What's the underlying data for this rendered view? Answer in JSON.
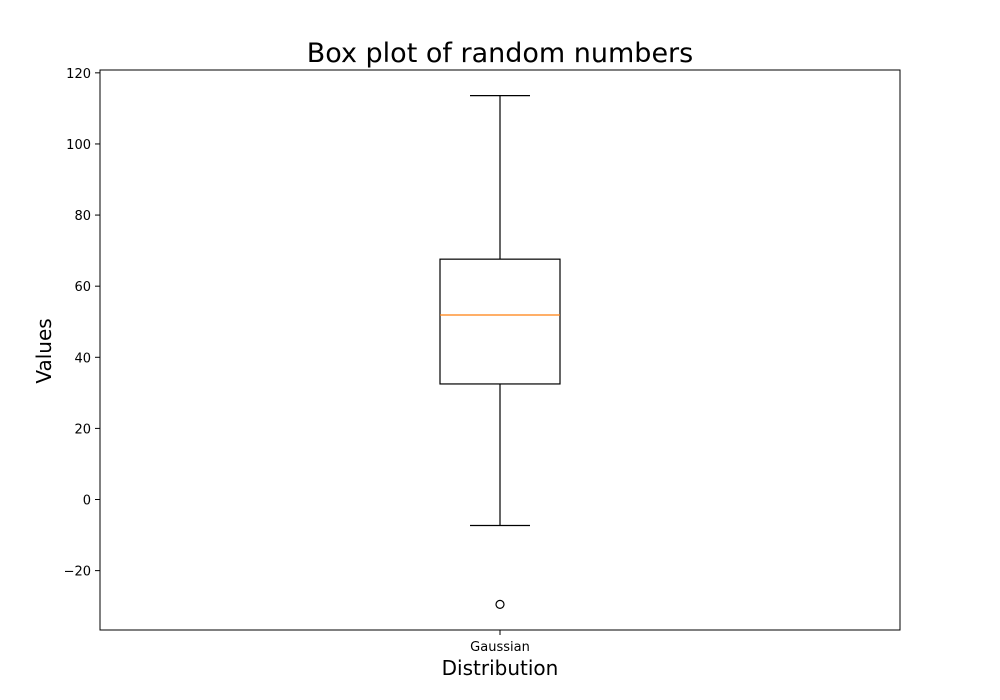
{
  "chart_data": {
    "type": "box",
    "title": "Box plot of random numbers",
    "xlabel": "Distribution",
    "ylabel": "Values",
    "categories": [
      "Gaussian"
    ],
    "boxes": [
      {
        "name": "Gaussian",
        "whisker_low": -7.3,
        "q1": 32.5,
        "median": 51.9,
        "q3": 67.6,
        "whisker_high": 113.6,
        "outliers": [
          -29.5
        ]
      }
    ],
    "ylim": [
      -36.7,
      120.8
    ],
    "yticks": [
      -20,
      0,
      20,
      40,
      60,
      80,
      100,
      120
    ],
    "ytick_labels": [
      "−20",
      "0",
      "20",
      "40",
      "60",
      "80",
      "100",
      "120"
    ],
    "grid": false,
    "colors": {
      "box": "#000000",
      "median": "#ff7f0e",
      "outlier": "#000000"
    }
  }
}
